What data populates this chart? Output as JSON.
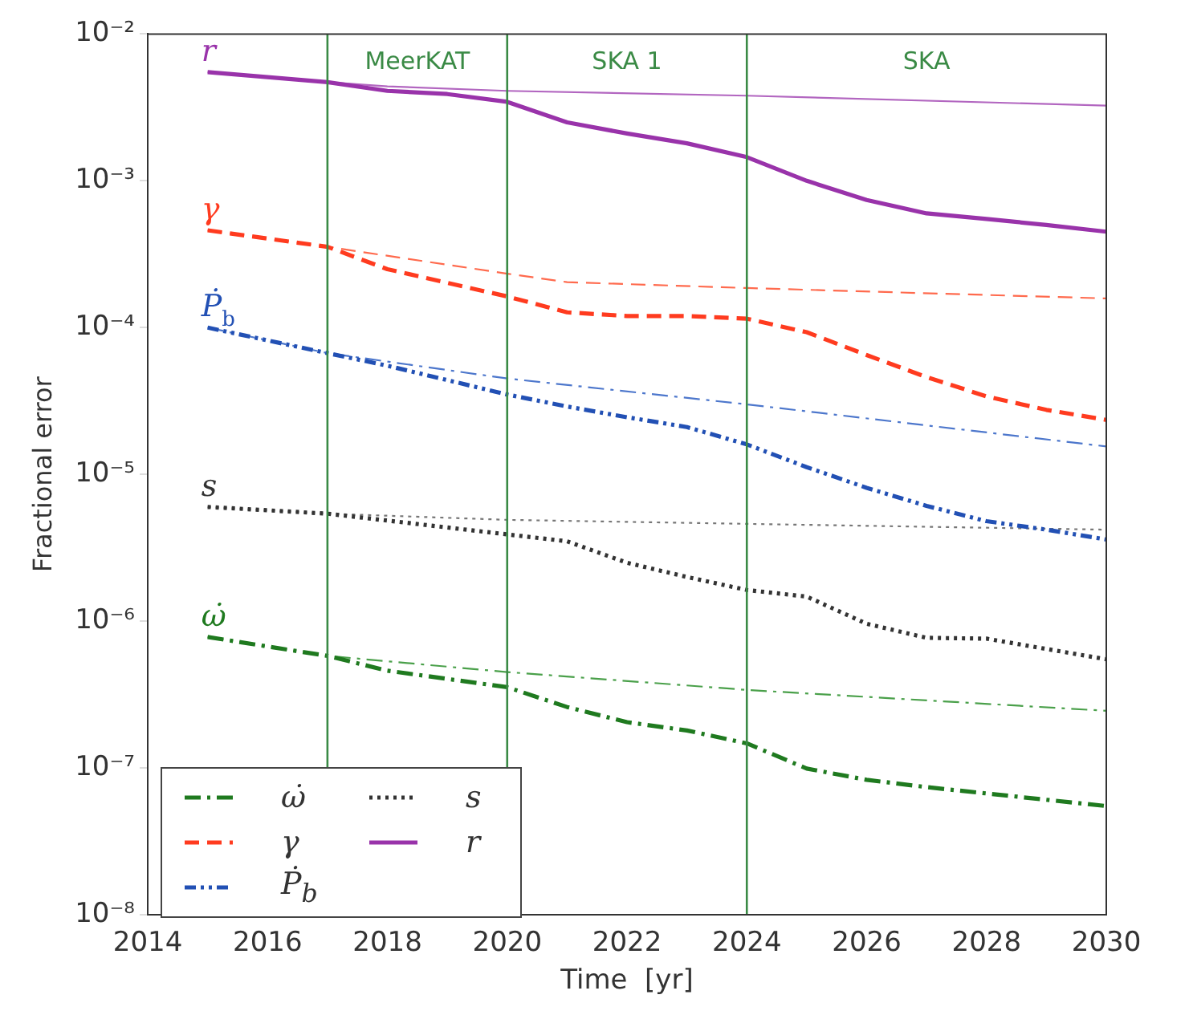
{
  "chart_data": {
    "type": "line",
    "xlabel": "Time  [yr]",
    "ylabel": "Fractional error",
    "log": "y",
    "grid": false,
    "legend": "bottom left",
    "marker": "none",
    "xlim": [
      2014,
      2030
    ],
    "xticks": [
      2014,
      2016,
      2018,
      2020,
      2022,
      2024,
      2026,
      2028,
      2030
    ],
    "ylim": [
      1e-08,
      0.01
    ],
    "yticks": [
      {
        "value": 1e-08,
        "label": "10⁻⁸"
      },
      {
        "value": 1e-07,
        "label": "10⁻⁷"
      },
      {
        "value": 1e-06,
        "label": "10⁻⁶"
      },
      {
        "value": 1e-05,
        "label": "10⁻⁵"
      },
      {
        "value": 0.0001,
        "label": "10⁻⁴"
      },
      {
        "value": 0.001,
        "label": "10⁻³"
      },
      {
        "value": 0.01,
        "label": "10⁻²"
      }
    ],
    "series": [
      {
        "name": "ω̇",
        "color": "#1f7a1f",
        "line_style": "dashdot",
        "x": [
          2015,
          2017,
          2018,
          2020,
          2021,
          2022,
          2023,
          2024,
          2025,
          2026,
          2027,
          2028,
          2030
        ],
        "values": [
          7.8e-07,
          5.8e-07,
          4.6e-07,
          3.55e-07,
          2.6e-07,
          2.05e-07,
          1.8e-07,
          1.47e-07,
          9.9e-08,
          8.3e-08,
          7.4e-08,
          6.7e-08,
          5.5e-08
        ]
      },
      {
        "name": "γ",
        "color": "#ff3b1f",
        "line_style": "dashed",
        "x": [
          2015,
          2017,
          2018,
          2020,
          2021,
          2022,
          2023,
          2024,
          2025,
          2026,
          2027,
          2028,
          2029,
          2030
        ],
        "values": [
          0.00046,
          0.000355,
          0.00025,
          0.000163,
          0.000127,
          0.00012,
          0.00012,
          0.000115,
          9.3e-05,
          6.5e-05,
          4.6e-05,
          3.4e-05,
          2.75e-05,
          2.35e-05
        ]
      },
      {
        "name": "Ṗ$_{b}$",
        "color": "#2250b4",
        "line_style": "dashdotdot",
        "x": [
          2015,
          2017,
          2018,
          2020,
          2021,
          2022,
          2023,
          2024,
          2025,
          2026,
          2027,
          2028,
          2029,
          2030
        ],
        "values": [
          0.0001,
          6.7e-05,
          5.5e-05,
          3.5e-05,
          2.9e-05,
          2.45e-05,
          2.1e-05,
          1.6e-05,
          1.12e-05,
          8.1e-06,
          6.1e-06,
          4.8e-06,
          4.2e-06,
          3.6e-06
        ]
      },
      {
        "name": "s",
        "color": "#333333",
        "line_style": "dotted",
        "x": [
          2015,
          2017,
          2020,
          2021,
          2022,
          2023,
          2024,
          2025,
          2026,
          2027,
          2028,
          2030
        ],
        "values": [
          6e-06,
          5.4e-06,
          3.9e-06,
          3.5e-06,
          2.5e-06,
          2e-06,
          1.63e-06,
          1.47e-06,
          9.6e-07,
          7.7e-07,
          7.6e-07,
          5.5e-07
        ]
      },
      {
        "name": "r",
        "color": "#9933aa",
        "line_style": "solid",
        "x": [
          2015,
          2017,
          2018,
          2019,
          2020,
          2021,
          2022,
          2023,
          2024,
          2025,
          2026,
          2027,
          2028,
          2029,
          2030
        ],
        "values": [
          0.0055,
          0.0047,
          0.0041,
          0.0039,
          0.00345,
          0.0025,
          0.0021,
          0.0018,
          0.00145,
          0.001,
          0.00074,
          0.0006,
          0.00055,
          0.0005,
          0.00045
        ]
      },
      {
        "color": "#4aa04a",
        "line_style": "dashdot",
        "x": [
          2015,
          2017,
          2020,
          2024,
          2030
        ],
        "values": [
          7.8e-07,
          5.8e-07,
          4.5e-07,
          3.4e-07,
          2.45e-07
        ]
      },
      {
        "color": "#ff6a4d",
        "line_style": "dashed",
        "x": [
          2015,
          2017,
          2020,
          2021,
          2024,
          2030
        ],
        "values": [
          0.00046,
          0.000355,
          0.000233,
          0.000204,
          0.000186,
          0.000158
        ]
      },
      {
        "color": "#4d77cc",
        "line_style": "dashdot",
        "x": [
          2015,
          2017,
          2020,
          2024,
          2030
        ],
        "values": [
          0.0001,
          6.7e-05,
          4.5e-05,
          3e-05,
          1.55e-05
        ]
      },
      {
        "color": "#777777",
        "line_style": "dotted",
        "x": [
          2015,
          2017,
          2020,
          2024,
          2030
        ],
        "values": [
          6e-06,
          5.4e-06,
          4.9e-06,
          4.6e-06,
          4.2e-06
        ]
      },
      {
        "color": "#b266c0",
        "line_style": "solid",
        "x": [
          2015,
          2017,
          2018,
          2020,
          2024,
          2030
        ],
        "values": [
          0.0055,
          0.0047,
          0.0044,
          0.0041,
          0.0038,
          0.00325
        ]
      }
    ],
    "ref_lines": [
      {
        "axis": "x",
        "value": 2017,
        "label": "MeerKAT",
        "color": "#3a8a45"
      },
      {
        "axis": "x",
        "value": 2020,
        "label": "SKA 1",
        "color": "#3a8a45"
      },
      {
        "axis": "x",
        "value": 2024,
        "label": "SKA",
        "color": "#3a8a45"
      }
    ],
    "annotations": [
      "ω̇",
      "γ",
      "Ṗ$_{b}$",
      "s",
      "r"
    ]
  }
}
